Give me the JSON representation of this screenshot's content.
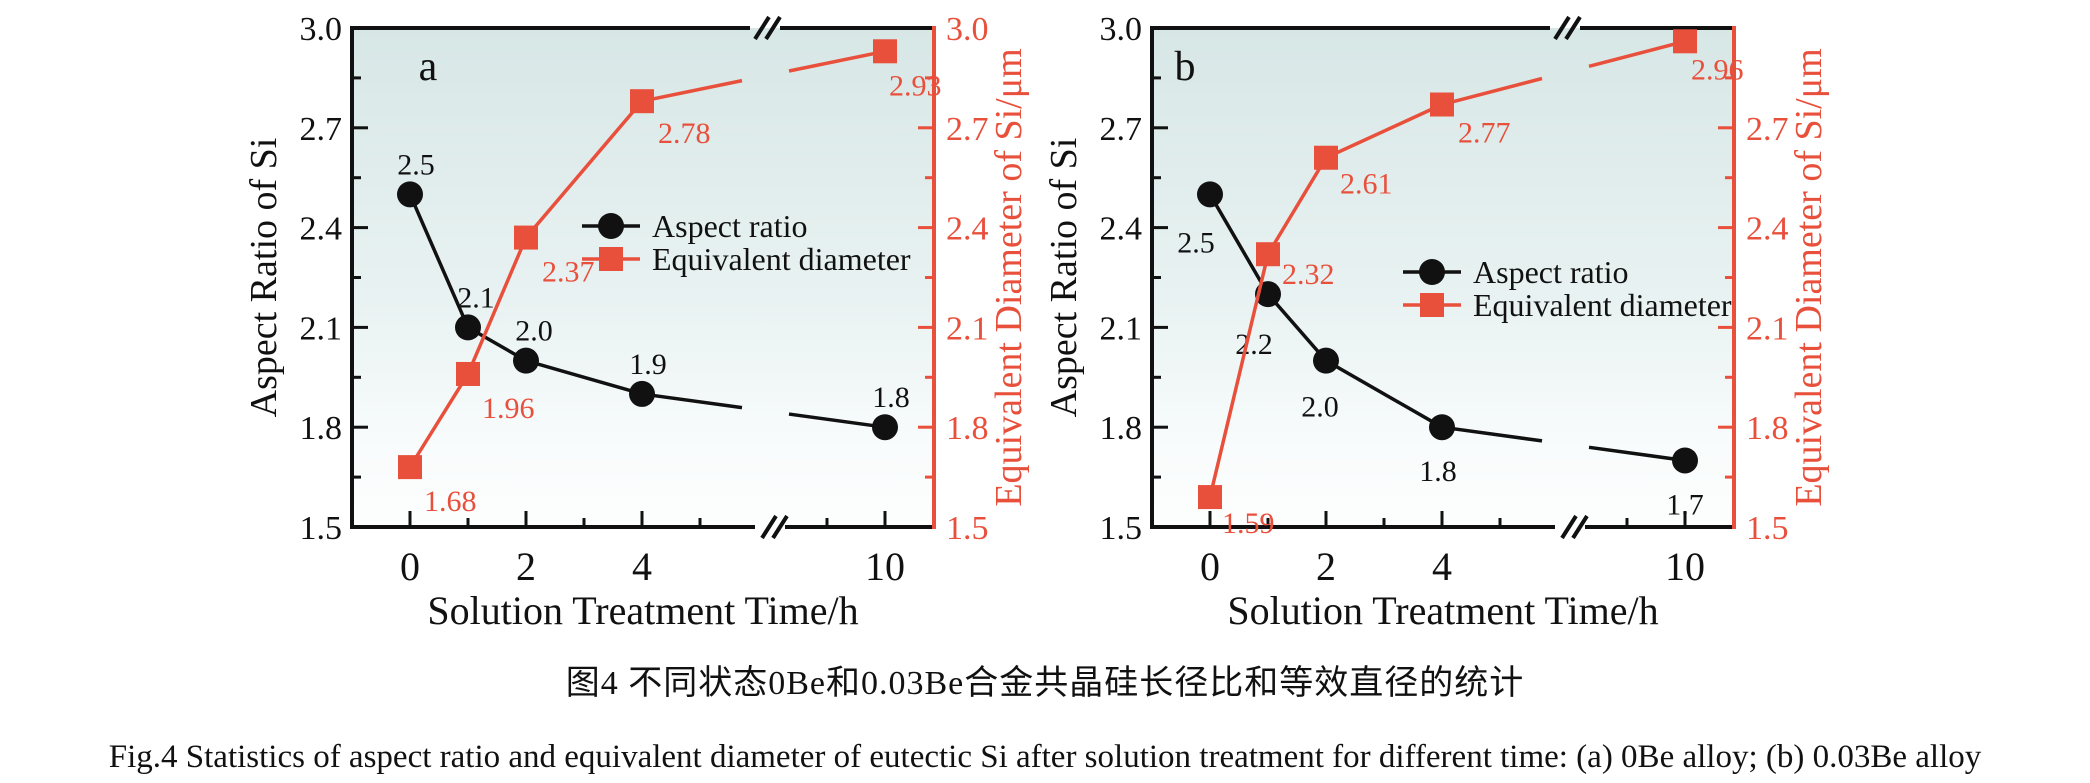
{
  "figure": {
    "caption_zh": "图4  不同状态0Be和0.03Be合金共晶硅长径比和等效直径的统计",
    "caption_en": "Fig.4  Statistics of aspect ratio and equivalent diameter of eutectic Si after solution treatment for different time: (a) 0Be alloy; (b) 0.03Be alloy"
  },
  "colors": {
    "aspect_series": "#111111",
    "diameter_series": "#e8503c",
    "plot_bg_top": "#d7e7e6",
    "plot_bg_bottom": "#fdfefe"
  },
  "chart_data": [
    {
      "type": "line",
      "panel": "a",
      "alloy": "0Be alloy",
      "xlabel": "Solution Treatment Time/h",
      "ylabel_left": "Aspect Ratio of Si",
      "ylabel_right": "Equivalent Diameter of Si/μm",
      "ylim": [
        1.5,
        3.0
      ],
      "x": [
        0,
        1,
        2,
        4,
        10
      ],
      "x_axis_break": "between 5 and 10",
      "xtick_labels": [
        "0",
        "2",
        "4",
        "10"
      ],
      "xtick_values": [
        0,
        2,
        4,
        10
      ],
      "ytick_labels_left": [
        "3.0",
        "2.7",
        "2.4",
        "2.1",
        "1.8",
        "1.5"
      ],
      "ytick_labels_right": [
        "3.0",
        "2.7",
        "2.4",
        "2.1",
        "1.8",
        "1.5"
      ],
      "legend": [
        "Aspect ratio",
        "Equivalent diameter"
      ],
      "series": [
        {
          "name": "Aspect ratio",
          "axis": "left",
          "marker": "circle",
          "values": [
            2.5,
            2.1,
            2.0,
            1.9,
            1.8
          ],
          "labels": [
            "2.5",
            "2.1",
            "2.0",
            "1.9",
            "1.8"
          ]
        },
        {
          "name": "Equivalent diameter",
          "axis": "right",
          "marker": "square",
          "values": [
            1.68,
            1.96,
            2.37,
            2.78,
            2.93
          ],
          "labels": [
            "1.68",
            "1.96",
            "2.37",
            "2.78",
            "2.93"
          ]
        }
      ]
    },
    {
      "type": "line",
      "panel": "b",
      "alloy": "0.03Be alloy",
      "xlabel": "Solution Treatment Time/h",
      "ylabel_left": "Aspect Ratio of Si",
      "ylabel_right": "Equivalent Diameter of Si/μm",
      "ylim": [
        1.5,
        3.0
      ],
      "x": [
        0,
        1,
        2,
        4,
        10
      ],
      "x_axis_break": "between 5 and 10",
      "xtick_labels": [
        "0",
        "2",
        "4",
        "10"
      ],
      "xtick_values": [
        0,
        2,
        4,
        10
      ],
      "ytick_labels_left": [
        "3.0",
        "2.7",
        "2.4",
        "2.1",
        "1.8",
        "1.5"
      ],
      "ytick_labels_right": [
        "2.7",
        "2.4",
        "2.1",
        "1.8",
        "1.5"
      ],
      "legend": [
        "Aspect ratio",
        "Equivalent diameter"
      ],
      "series": [
        {
          "name": "Aspect ratio",
          "axis": "left",
          "marker": "circle",
          "values": [
            2.5,
            2.2,
            2.0,
            1.8,
            1.7
          ],
          "labels": [
            "2.5",
            "2.2",
            "2.0",
            "1.8",
            "1.7"
          ]
        },
        {
          "name": "Equivalent diameter",
          "axis": "right",
          "marker": "square",
          "values": [
            1.59,
            2.32,
            2.61,
            2.77,
            2.96
          ],
          "labels": [
            "1.59",
            "2.32",
            "2.61",
            "2.77",
            "2.96"
          ]
        }
      ]
    }
  ]
}
